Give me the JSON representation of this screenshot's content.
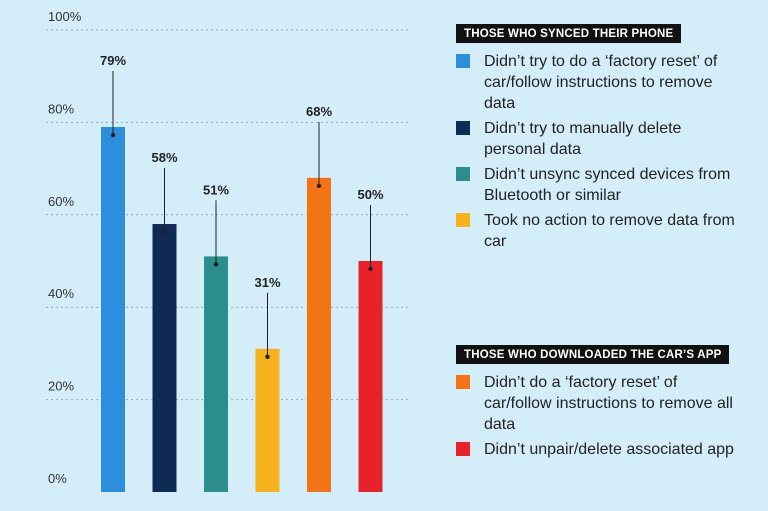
{
  "chart_data": {
    "type": "bar",
    "ylim": [
      0,
      100
    ],
    "yticks": [
      0,
      20,
      40,
      60,
      80,
      100
    ],
    "ytick_labels": [
      "0%",
      "20%",
      "40%",
      "60%",
      "80%",
      "100%"
    ],
    "grid": true,
    "legend_position": "right",
    "series": [
      {
        "name": "Didn’t try to do a ‘factory reset’ of car/follow instructions to remove data",
        "value": 79,
        "label": "79%",
        "color": "#2b8fde",
        "group": 0
      },
      {
        "name": "Didn’t try to manually delete personal data",
        "value": 58,
        "label": "58%",
        "color": "#0f2a55",
        "group": 0
      },
      {
        "name": "Didn’t unsync synced devices from Bluetooth or similar",
        "value": 51,
        "label": "51%",
        "color": "#2b8d8c",
        "group": 0
      },
      {
        "name": "Took no action to remove data from car",
        "value": 31,
        "label": "31%",
        "color": "#f6b21d",
        "group": 0
      },
      {
        "name": "Didn’t do a ‘factory reset’ of car/follow instructions to remove all data",
        "value": 68,
        "label": "68%",
        "color": "#f47314",
        "group": 1
      },
      {
        "name": "Didn’t unpair/delete associated app",
        "value": 50,
        "label": "50%",
        "color": "#e8212b",
        "group": 1
      }
    ]
  },
  "legend": {
    "groups": [
      {
        "title": "THOSE WHO SYNCED THEIR PHONE",
        "items": [
          {
            "label": "Didn’t try to do a ‘factory reset’ of car/follow instructions to remove data",
            "color": "#2b8fde"
          },
          {
            "label": "Didn’t try to manually delete personal data",
            "color": "#0f2a55"
          },
          {
            "label": "Didn’t unsync synced devices from Bluetooth or similar",
            "color": "#2b8d8c"
          },
          {
            "label": "Took no action to remove data from car",
            "color": "#f6b21d"
          }
        ]
      },
      {
        "title": "THOSE WHO DOWNLOADED THE CAR’S APP",
        "items": [
          {
            "label": "Didn’t do a ‘factory reset’ of car/follow instructions to remove all data",
            "color": "#f47314"
          },
          {
            "label": "Didn’t unpair/delete associated app",
            "color": "#e8212b"
          }
        ]
      }
    ]
  }
}
